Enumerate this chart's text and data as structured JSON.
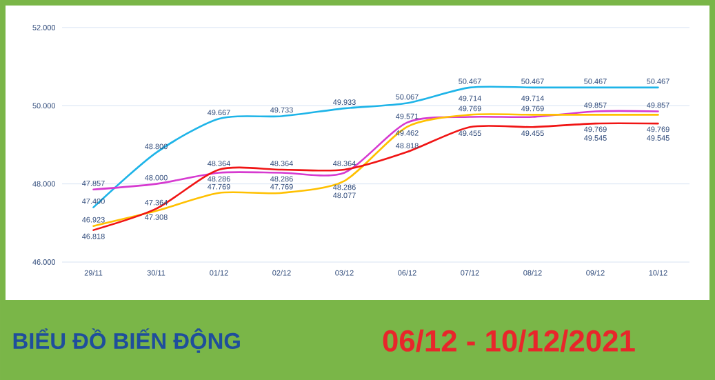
{
  "chart_data": {
    "type": "line",
    "title": "BIỂU ĐỒ BIẾN ĐỘNG",
    "subtitle": "06/12 - 10/12/2021",
    "categories": [
      "29/11",
      "30/11",
      "01/12",
      "02/12",
      "03/12",
      "06/12",
      "07/12",
      "08/12",
      "09/12",
      "10/12"
    ],
    "ylim": [
      46,
      52
    ],
    "yticks": [
      {
        "value": 46,
        "label": "46.000"
      },
      {
        "value": 48,
        "label": "48.000"
      },
      {
        "value": 50,
        "label": "50.000"
      },
      {
        "value": 52,
        "label": "52.000"
      }
    ],
    "grid": "y",
    "series": [
      {
        "color": "#1eb4e8",
        "values": [
          47.4,
          48.8,
          49.667,
          49.733,
          49.933,
          50.067,
          50.467,
          50.467,
          50.467,
          50.467
        ],
        "value_labels": [
          "47.400",
          "48.800",
          "49.667",
          "49.733",
          "49.933",
          "50.067",
          "50.467",
          "50.467",
          "50.467",
          "50.467"
        ]
      },
      {
        "color": "#d63ad0",
        "values": [
          47.857,
          48.0,
          48.286,
          48.286,
          48.286,
          49.571,
          49.714,
          49.714,
          49.857,
          49.857
        ],
        "value_labels": [
          "47.857",
          "48.000",
          "48.286",
          "48.286",
          "48.286",
          "49.571",
          "49.714",
          "49.714",
          "49.857",
          "49.857"
        ]
      },
      {
        "color": "#ffc000",
        "values": [
          46.923,
          47.308,
          47.769,
          47.769,
          48.077,
          49.462,
          49.769,
          49.769,
          49.769,
          49.769
        ],
        "value_labels": [
          "46.923",
          "47.308",
          "47.769",
          "47.769",
          "48.077",
          "49.462",
          "49.769",
          "49.769",
          "49.769",
          "49.769"
        ]
      },
      {
        "color": "#f01414",
        "values": [
          46.818,
          47.364,
          48.364,
          48.364,
          48.364,
          48.818,
          49.455,
          49.455,
          49.545,
          49.545
        ],
        "value_labels": [
          "46.818",
          "47.364",
          "48.364",
          "48.364",
          "48.364",
          "48.818",
          "49.455",
          "49.455",
          "49.545",
          "49.545"
        ]
      }
    ]
  }
}
